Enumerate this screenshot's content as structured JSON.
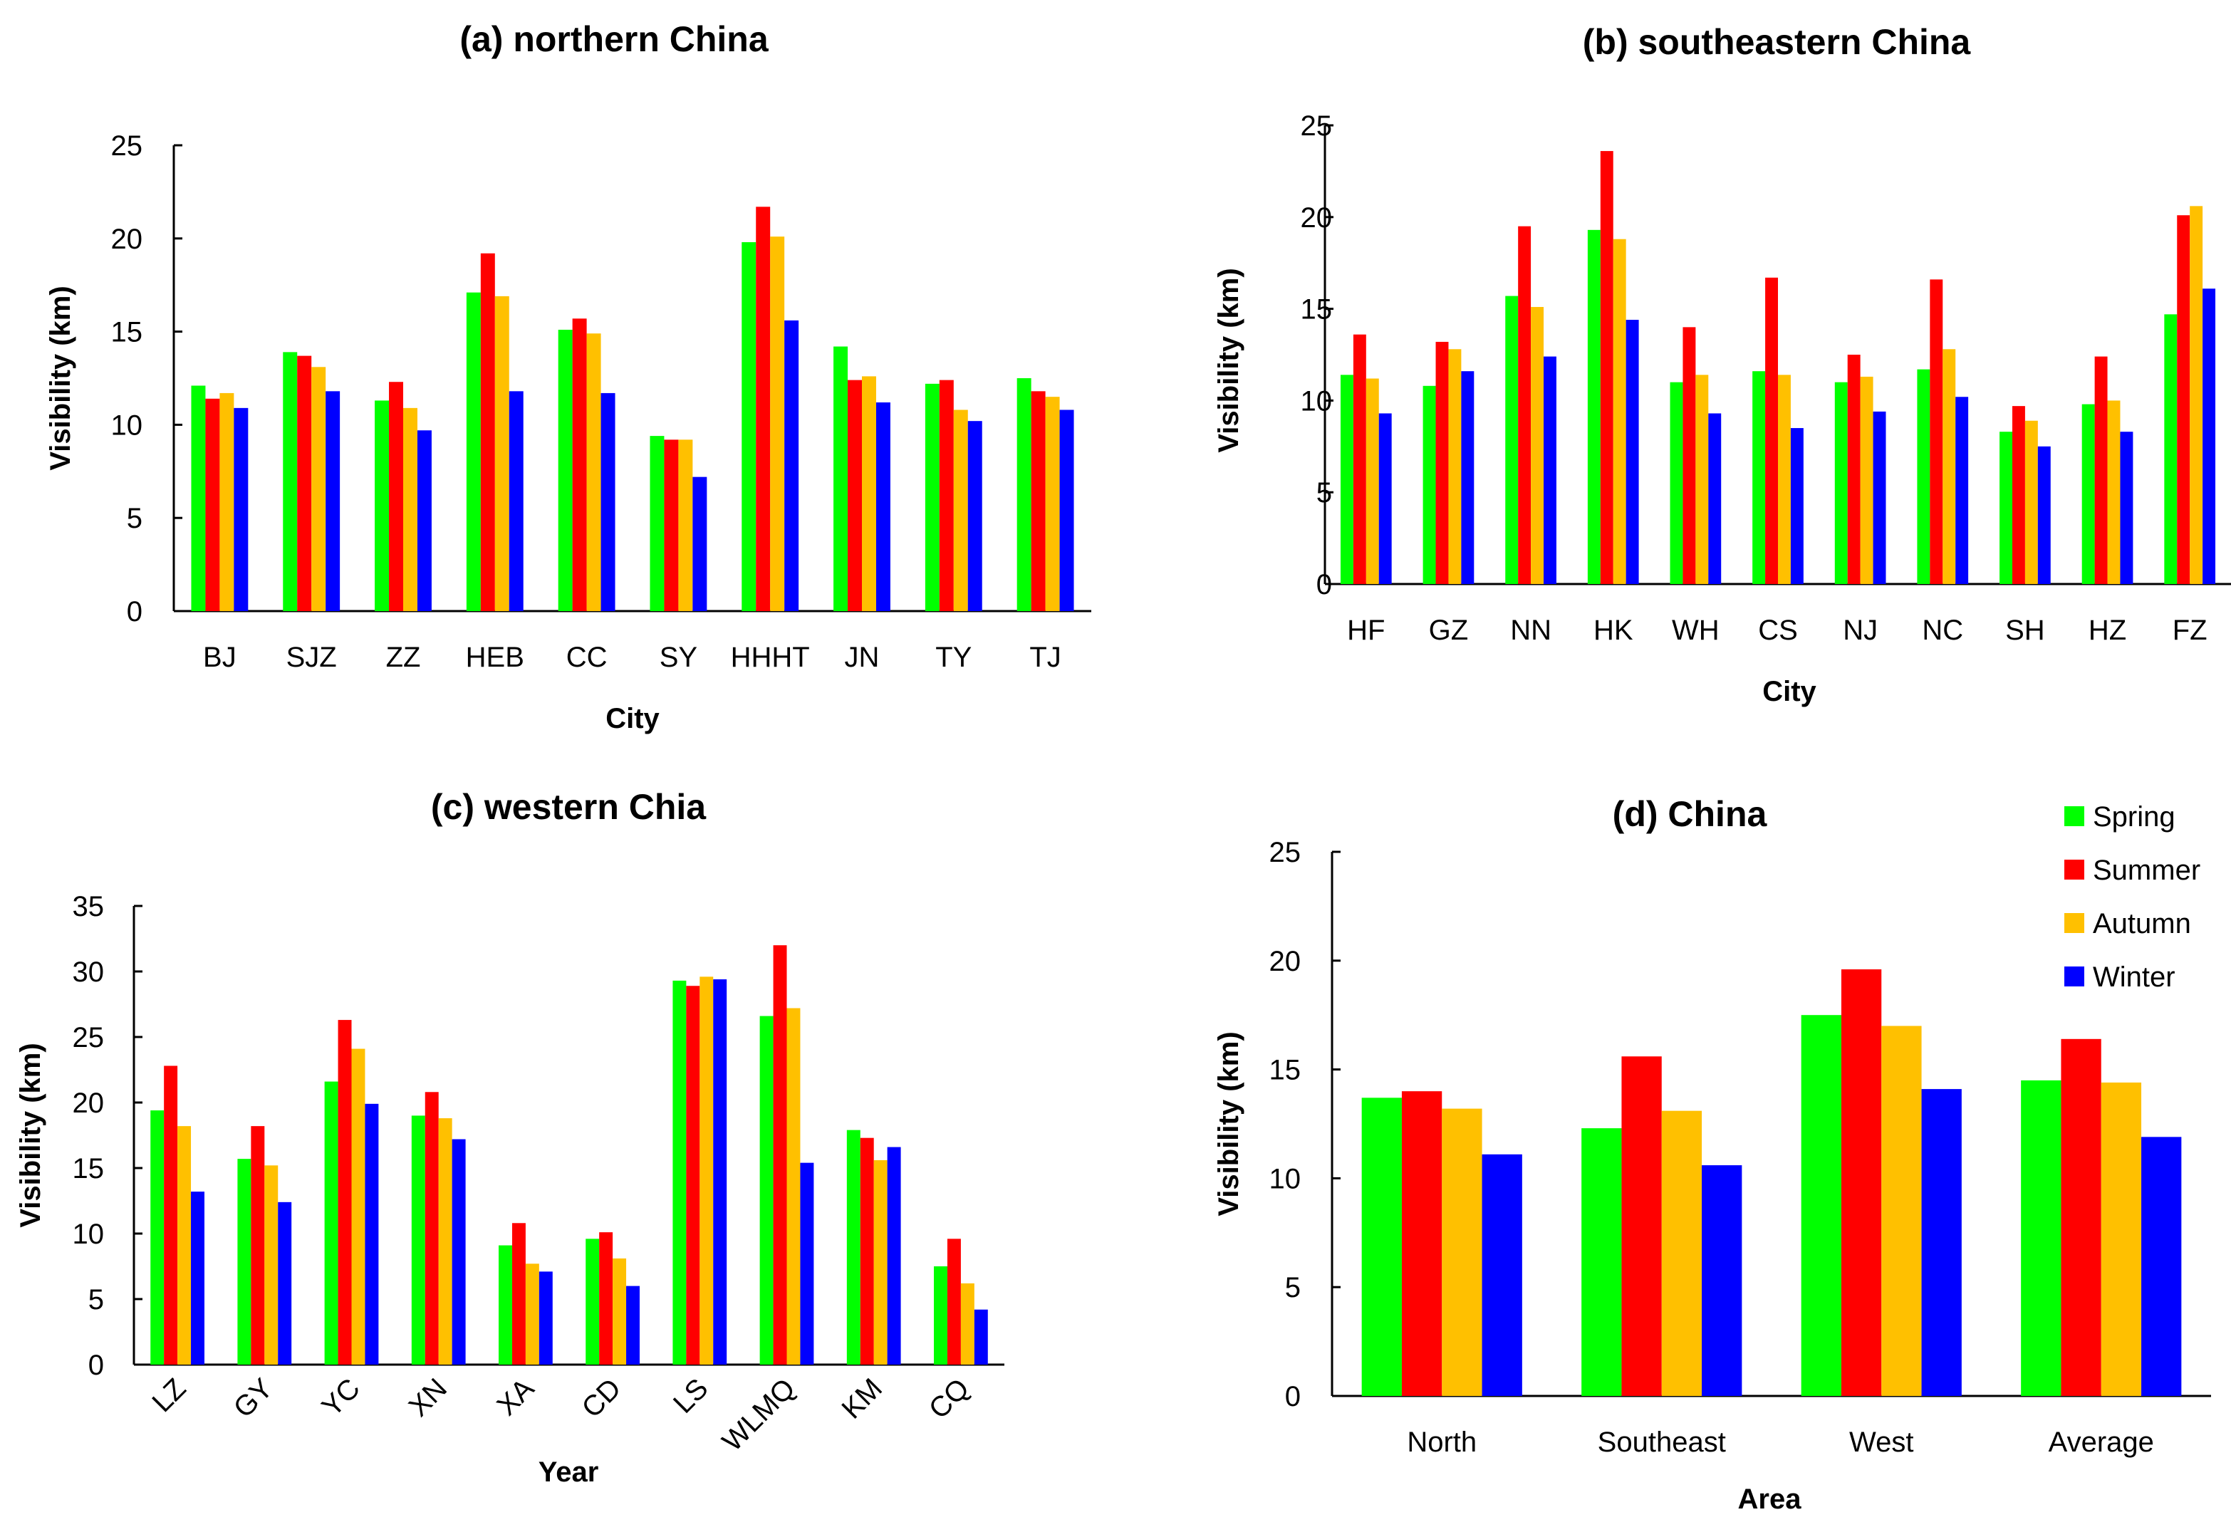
{
  "chart_data": [
    {
      "id": "a",
      "type": "bar",
      "title": "(a) northern China",
      "xlabel": "City",
      "ylabel": "Visibility (km)",
      "ylim": [
        0,
        25
      ],
      "yticks": [
        0,
        5,
        10,
        15,
        20,
        25
      ],
      "categories": [
        "BJ",
        "SJZ",
        "ZZ",
        "HEB",
        "CC",
        "SY",
        "HHHT",
        "JN",
        "TY",
        "TJ"
      ],
      "series": [
        {
          "name": "Spring",
          "values": [
            12.1,
            13.9,
            11.3,
            17.1,
            15.1,
            9.4,
            19.8,
            14.2,
            12.2,
            12.5
          ]
        },
        {
          "name": "Summer",
          "values": [
            11.4,
            13.7,
            12.3,
            19.2,
            15.7,
            9.2,
            21.7,
            12.4,
            12.4,
            11.8
          ]
        },
        {
          "name": "Autumn",
          "values": [
            11.7,
            13.1,
            10.9,
            16.9,
            14.9,
            9.2,
            20.1,
            12.6,
            10.8,
            11.5
          ]
        },
        {
          "name": "Winter",
          "values": [
            10.9,
            11.8,
            9.7,
            11.8,
            11.7,
            7.2,
            15.6,
            11.2,
            10.2,
            10.8
          ]
        }
      ]
    },
    {
      "id": "b",
      "type": "bar",
      "title": "(b) southeastern China",
      "xlabel": "City",
      "ylabel": "Visibility (km)",
      "ylim": [
        0,
        25
      ],
      "yticks": [
        0,
        5,
        10,
        15,
        20,
        25
      ],
      "categories": [
        "HF",
        "GZ",
        "NN",
        "HK",
        "WH",
        "CS",
        "NJ",
        "NC",
        "SH",
        "HZ",
        "FZ"
      ],
      "series": [
        {
          "name": "Spring",
          "values": [
            11.4,
            10.8,
            15.7,
            19.3,
            11.0,
            11.6,
            11.0,
            11.7,
            8.3,
            9.8,
            14.7
          ]
        },
        {
          "name": "Summer",
          "values": [
            13.6,
            13.2,
            19.5,
            23.6,
            14.0,
            16.7,
            12.5,
            16.6,
            9.7,
            12.4,
            20.1
          ]
        },
        {
          "name": "Autumn",
          "values": [
            11.2,
            12.8,
            15.1,
            18.8,
            11.4,
            11.4,
            11.3,
            12.8,
            8.9,
            10.0,
            20.6
          ]
        },
        {
          "name": "Winter",
          "values": [
            9.3,
            11.6,
            12.4,
            14.4,
            9.3,
            8.5,
            9.4,
            10.2,
            7.5,
            8.3,
            16.1
          ]
        }
      ]
    },
    {
      "id": "c",
      "type": "bar",
      "title": "(c) western Chia",
      "xlabel": "Year",
      "ylabel": "Visibility (km)",
      "ylim": [
        0,
        35
      ],
      "yticks": [
        0,
        5,
        10,
        15,
        20,
        25,
        30,
        35
      ],
      "categories": [
        "LZ",
        "GY",
        "YC",
        "XN",
        "XA",
        "CD",
        "LS",
        "WLMQ",
        "KM",
        "CQ"
      ],
      "series": [
        {
          "name": "Spring",
          "values": [
            19.4,
            15.7,
            21.6,
            19.0,
            9.1,
            9.6,
            29.3,
            26.6,
            17.9,
            7.5
          ]
        },
        {
          "name": "Summer",
          "values": [
            22.8,
            18.2,
            26.3,
            20.8,
            10.8,
            10.1,
            28.9,
            32.0,
            17.3,
            9.6
          ]
        },
        {
          "name": "Autumn",
          "values": [
            18.2,
            15.2,
            24.1,
            18.8,
            7.7,
            8.1,
            29.6,
            27.2,
            15.6,
            6.2
          ]
        },
        {
          "name": "Winter",
          "values": [
            13.2,
            12.4,
            19.9,
            17.2,
            7.1,
            6.0,
            29.4,
            15.4,
            16.6,
            4.2
          ]
        }
      ]
    },
    {
      "id": "d",
      "type": "bar",
      "title": "(d) China",
      "xlabel": "Area",
      "ylabel": "Visibility (km)",
      "ylim": [
        0,
        25
      ],
      "yticks": [
        0,
        5,
        10,
        15,
        20,
        25
      ],
      "categories": [
        "North",
        "Southeast",
        "West",
        "Average"
      ],
      "series": [
        {
          "name": "Spring",
          "values": [
            13.7,
            12.3,
            17.5,
            14.5
          ]
        },
        {
          "name": "Summer",
          "values": [
            14.0,
            15.6,
            19.6,
            16.4
          ]
        },
        {
          "name": "Autumn",
          "values": [
            13.2,
            13.1,
            17.0,
            14.4
          ]
        },
        {
          "name": "Winter",
          "values": [
            11.1,
            10.6,
            14.1,
            11.9
          ]
        }
      ],
      "legend": {
        "position": "top-right",
        "entries": [
          "Spring",
          "Summer",
          "Autumn",
          "Winter"
        ]
      }
    }
  ],
  "colors": {
    "Spring": "#00ff00",
    "Summer": "#ff0000",
    "Autumn": "#ffc000",
    "Winter": "#0000ff"
  }
}
